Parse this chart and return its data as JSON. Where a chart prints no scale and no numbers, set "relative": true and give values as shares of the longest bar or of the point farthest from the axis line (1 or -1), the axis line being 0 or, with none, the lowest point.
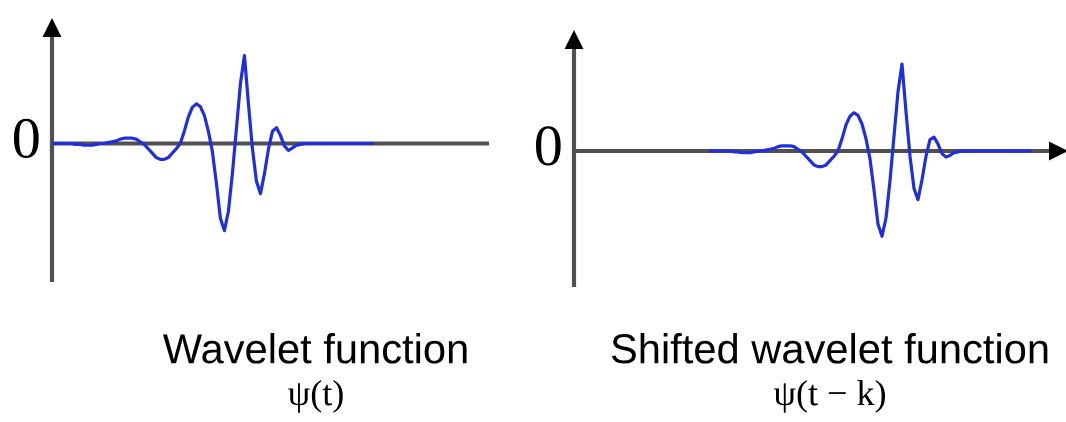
{
  "chart_data": [
    {
      "type": "line",
      "title": "Wavelet function",
      "subtitle": "ψ(t)",
      "relative": true,
      "categories": [
        null,
        null,
        null,
        null,
        null,
        null,
        null,
        null,
        null,
        null,
        null,
        null,
        null,
        null,
        null,
        null,
        null,
        null,
        null,
        null,
        null,
        null,
        null,
        null,
        null,
        null,
        null,
        null,
        null,
        null,
        null,
        null,
        null,
        null,
        null,
        null,
        null,
        null,
        null,
        null,
        null,
        null,
        null,
        null,
        null,
        null,
        null,
        null,
        null,
        null,
        null,
        null,
        null,
        null,
        null,
        null,
        null,
        null,
        null,
        null,
        null,
        null,
        null,
        null,
        null,
        null,
        null,
        null,
        null,
        null,
        null,
        null,
        null,
        null,
        null,
        null,
        null,
        null,
        null,
        null,
        null,
        null,
        null,
        null,
        null,
        null,
        null,
        null,
        null,
        null,
        null,
        null,
        null,
        null,
        null,
        null,
        null,
        null,
        null,
        null,
        null,
        null,
        null,
        null,
        null,
        null,
        null,
        null,
        null,
        null
      ],
      "series": [
        {
          "color": "#1f2fe0",
          "values": [
            0,
            0,
            0,
            0,
            0,
            0,
            -0.01,
            -0.01,
            -0.02,
            -0.02,
            -0.02,
            -0.01,
            0,
            0,
            0.01,
            0.02,
            0.03,
            0.05,
            0.06,
            0.06,
            0.06,
            0.05,
            0.02,
            -0.01,
            -0.06,
            -0.11,
            -0.16,
            -0.18,
            -0.18,
            -0.16,
            -0.11,
            -0.06,
            0,
            0.14,
            0.3,
            0.41,
            0.45,
            0.42,
            0.32,
            0.14,
            -0.09,
            -0.45,
            -0.85,
            -0.99,
            -0.77,
            -0.34,
            0.17,
            0.68,
            1,
            0.45,
            -0.06,
            -0.43,
            -0.57,
            -0.34,
            -0.06,
            0.14,
            0.18,
            0.09,
            -0.03,
            -0.08,
            -0.05,
            -0.02,
            -0.01,
            0,
            0,
            0,
            0,
            0,
            0,
            0,
            0,
            0,
            0,
            0,
            0,
            0,
            0,
            0,
            0,
            0,
            0,
            null,
            null,
            null,
            null,
            null,
            null,
            null,
            null,
            null,
            null,
            null,
            null,
            null,
            null,
            null,
            null,
            null,
            null,
            null,
            null,
            null,
            null,
            null,
            null,
            null,
            null,
            null,
            null,
            null
          ]
        }
      ],
      "ref_lines": [
        {
          "axis": "y",
          "value": 0,
          "label": "0",
          "color": "#505050"
        }
      ]
    },
    {
      "type": "line",
      "title": "Shifted wavelet function",
      "subtitle": "ψ(t − k)",
      "relative": true,
      "categories": [
        null,
        null,
        null,
        null,
        null,
        null,
        null,
        null,
        null,
        null,
        null,
        null,
        null,
        null,
        null,
        null,
        null,
        null,
        null,
        null,
        null,
        null,
        null,
        null,
        null,
        null,
        null,
        null,
        null,
        null,
        null,
        null,
        null,
        null,
        null,
        null,
        null,
        null,
        null,
        null,
        null,
        null,
        null,
        null,
        null,
        null,
        null,
        null,
        null,
        null,
        null,
        null,
        null,
        null,
        null,
        null,
        null,
        null,
        null,
        null,
        null,
        null,
        null,
        null,
        null,
        null,
        null,
        null,
        null,
        null,
        null,
        null,
        null,
        null,
        null,
        null,
        null,
        null,
        null,
        null,
        null,
        null,
        null,
        null,
        null,
        null,
        null,
        null,
        null,
        null,
        null,
        null,
        null,
        null,
        null,
        null,
        null,
        null,
        null,
        null,
        null,
        null,
        null,
        null,
        null,
        null,
        null,
        null,
        null,
        null,
        null,
        null,
        null,
        null,
        null,
        null,
        null,
        null,
        null,
        null,
        null,
        null
      ],
      "series": [
        {
          "color": "#1f2fe0",
          "values": [
            null,
            null,
            null,
            null,
            null,
            null,
            null,
            null,
            null,
            null,
            null,
            null,
            null,
            null,
            null,
            null,
            null,
            null,
            null,
            null,
            null,
            null,
            null,
            null,
            null,
            null,
            null,
            null,
            null,
            null,
            null,
            null,
            null,
            null,
            0,
            0,
            0,
            0,
            0,
            0,
            -0.01,
            -0.01,
            -0.02,
            -0.02,
            -0.02,
            -0.01,
            0,
            0,
            0.01,
            0.02,
            0.03,
            0.05,
            0.06,
            0.06,
            0.06,
            0.05,
            0.02,
            -0.01,
            -0.06,
            -0.11,
            -0.16,
            -0.18,
            -0.18,
            -0.16,
            -0.11,
            -0.06,
            0,
            0.14,
            0.3,
            0.4,
            0.44,
            0.41,
            0.31,
            0.14,
            -0.09,
            -0.45,
            -0.84,
            -0.98,
            -0.77,
            -0.34,
            0.17,
            0.68,
            1,
            0.45,
            -0.06,
            -0.43,
            -0.56,
            -0.33,
            -0.06,
            0.13,
            0.16,
            0.08,
            -0.03,
            -0.07,
            -0.05,
            -0.02,
            -0.01,
            0,
            0,
            0,
            0,
            0,
            0,
            0,
            0,
            0,
            0,
            0,
            0,
            0,
            0,
            0,
            0,
            0,
            0,
            null,
            null,
            null,
            null,
            null,
            null,
            null
          ]
        }
      ],
      "ref_lines": [
        {
          "axis": "y",
          "value": 0,
          "label": "0",
          "color": "#505050"
        }
      ]
    }
  ]
}
